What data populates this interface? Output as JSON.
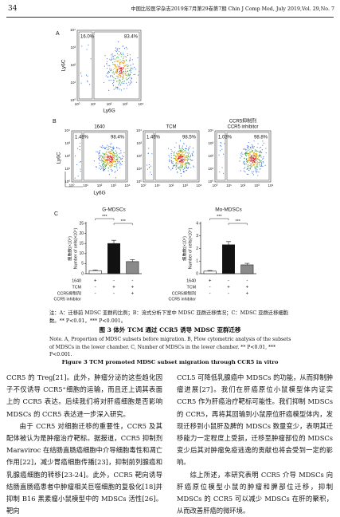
{
  "header": {
    "page": "34",
    "journal": "中国比较医学杂志2019年7月第29卷第7期  Chin J Comp Med, July 2019,Vol. 29,No. 7"
  },
  "figure": {
    "scatter_ticks": [
      "10⁰",
      "10¹",
      "10²",
      "10³",
      "10⁴"
    ],
    "panel_a": {
      "label": "A",
      "gates": [
        "16.0%",
        "83.4%"
      ],
      "y_axis": "Ly6C",
      "x_axis": "Ly6G"
    },
    "panel_b": {
      "label": "B",
      "y_axis": "Ly6C",
      "x_axis": "Ly6G",
      "plots": [
        {
          "title": [
            "1640"
          ],
          "gates": [
            "1.48%",
            "98.4%"
          ]
        },
        {
          "title": [
            "TCM"
          ],
          "gates": [
            "1.46%",
            "98.5%"
          ]
        },
        {
          "title": [
            "CCR5抑制剂",
            "CCR5 inhibitor"
          ],
          "gates": [
            "1.03%",
            "98.8%"
          ]
        }
      ]
    },
    "panel_c": {
      "label": "C",
      "conditions": [
        {
          "label": [
            "1640"
          ],
          "signs": [
            "+",
            "-",
            "-"
          ]
        },
        {
          "label": [
            "TCM"
          ],
          "signs": [
            "-",
            "+",
            "+"
          ]
        },
        {
          "label": [
            "CCR5抑制剂",
            "CCR5 inhibitor"
          ],
          "signs": [
            "-",
            "-",
            "+"
          ]
        }
      ]
    },
    "note": "注：A：迁移前 MDSC 亚群的比例；B：流式分析下室中 MDSC 亚群迁移情况；C：MDSC 亚群迁移细胞数。** P<0.01，*** P<0.001。",
    "title": "图 3   体外 TCM 通过 CCR5 诱导 MDSC 亚群迁移",
    "note_en": "Note. A, Proportion of MDSC subsets before migration. B, Flow cytometric analysis of the subsets of MDSCs in the lower chamber. C, Number of MDSCs in the lower chamber. ** P<0.01, *** P<0.001.",
    "title_en": "Figure 3   TCM promoted MDSC subset migration through CCR5 in vitro"
  },
  "chart_data": [
    {
      "type": "bar",
      "title": "G-MDSCs",
      "y_label": [
        "细胞数(×10⁴)",
        "Number of cells(×10⁴)"
      ],
      "categories": [
        null,
        null,
        null
      ],
      "values": [
        1.5,
        15,
        6
      ],
      "errors": [
        0.3,
        1.6,
        1.0
      ],
      "colors": [
        "#ffffff",
        "#111111",
        "#8a8a8a"
      ],
      "ylim": [
        0,
        25
      ],
      "yticks": [
        0,
        5,
        10,
        15,
        20,
        25
      ],
      "significance": [
        "***",
        "***"
      ]
    },
    {
      "type": "bar",
      "title": "Mo-MDSCs",
      "y_label": [
        "细胞数(×10⁴)",
        "Number of cells(×10⁴)"
      ],
      "categories": [
        null,
        null,
        null
      ],
      "values": [
        0.2,
        2.3,
        0.7
      ],
      "errors": [
        0.05,
        0.25,
        0.12
      ],
      "colors": [
        "#ffffff",
        "#111111",
        "#8a8a8a"
      ],
      "ylim": [
        0,
        4
      ],
      "yticks": [
        0,
        1,
        2,
        3,
        4
      ],
      "significance": [
        "***",
        "***"
      ]
    }
  ],
  "body": {
    "left": [
      "CCR5 的 Treg[21]。此外，肿瘤分泌的这些趋化因子不仅诱导 CCR5⁺细胞的运输，而且还上调其表面上的 CCR5 表达。后续我们将对肝癌细胞是否影响 MDSCs 的 CCR5 表达进一步深入研究。",
      "由于 CCR5 对细胞迁移的重要性，CCR5 及其配体被认为是肿瘤治疗靶标。据报道，CCR5 抑制剂 Maraviroc 在结肠直肠癌细胞中介导细胞毒性和凋亡作用[22]，减少胃癌细胞传播[23]，抑制前列腺癌和乳腺癌细胞的转移[23-24]。此外，CCR5 靶向诱导结肠直肠癌患者中肿瘤相关巨噬细胞的复极化[18]并抑制 B16 黑素瘤小鼠模型中的 MDSCs 活性[26]。靶向"
    ],
    "right": [
      "CCL5 可降低乳腺癌中 MDSCs 的功能，从而抑制肿瘤进展[27]。我们在肝癌原位小鼠模型体内证实 CCR5 作为肝癌治疗靶标可能性。我们抑制 MDSCs 的 CCR5，再将其回输到小鼠原位肝癌模型体内，发现迁移到小鼠肝及脾的 MDSCs 数量变少，表明其迁移能力一定程度上受损，迁移至肿瘤部位的 MDSCs 变少后其对肿瘤免疫逃逸的贡献也将会受到一定的影响。",
      "综上所述，本研究表明 CCR5 介导 MDSCs 向肝癌原位模型小鼠的肿瘤和脾部位迁移，抑制 MDSCs 的 CCR5 可以减少 MDSCs 在肝的聚积，从而改善肝癌的微环境。"
    ]
  }
}
